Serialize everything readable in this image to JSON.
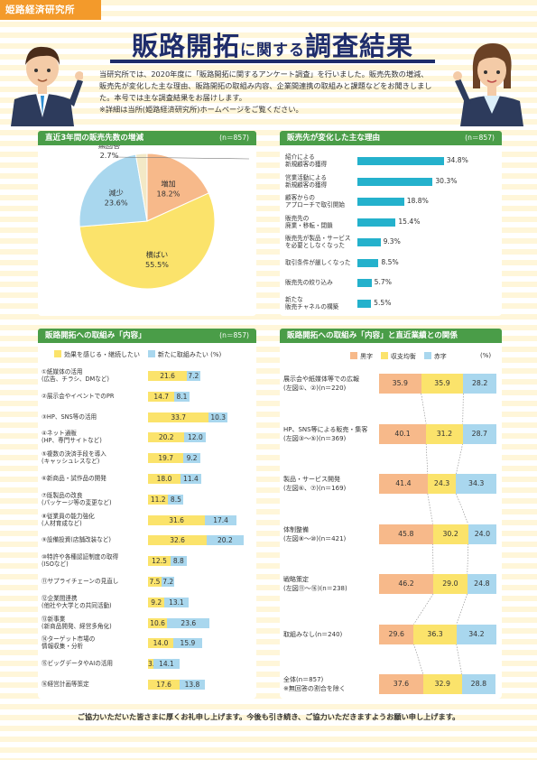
{
  "org_tag": "姫路経済研究所",
  "title": {
    "part1": "販路開拓",
    "part2": "に関する",
    "part3": "調査結果"
  },
  "intro": [
    "当研究所では、2020年度に「販路開拓に関するアンケート調査」を行いました。販売先数の増減、",
    "販売先が変化した主な理由、販路開拓の取組み内容、企業間連携の取組みと課題などをお聞きしまし",
    "た。本号では主な調査結果をお届けします。",
    "※詳細は当所(姫路経済研究所)ホームページをご覧ください。"
  ],
  "colors": {
    "green": "#4a9d48",
    "cyan": "#24b1cc",
    "yellow": "#fbe36b",
    "lightblue": "#a9d7ee",
    "orange": "#f7b98a",
    "navy": "#1f2d6b"
  },
  "panel1": {
    "title": "直近3年間の販売先数の増減",
    "n": "(n＝857)"
  },
  "panel2": {
    "title": "販売先が変化した主な理由",
    "n": "(n＝857)"
  },
  "panel3": {
    "title": "販路開拓への取組み「内容」",
    "n": "(n＝857)",
    "legend_yellow": "効果を感じる・継続したい",
    "legend_blue": "新たに取組みたい",
    "unit": "(%)"
  },
  "panel4": {
    "title": "販路開拓への取組み「内容」と直近業績との関係",
    "legend": [
      "黒字",
      "収支均衡",
      "赤字"
    ],
    "unit": "(%)"
  },
  "chart_data": [
    {
      "type": "pie",
      "title": "直近3年間の販売先数の増減",
      "slices": [
        {
          "label": "増加",
          "value": 18.2,
          "value_text": "18.2%",
          "color": "#f7b98a"
        },
        {
          "label": "横ばい",
          "value": 55.5,
          "value_text": "55.5%",
          "color": "#fbe36b"
        },
        {
          "label": "減少",
          "value": 23.6,
          "value_text": "23.6%",
          "color": "#a9d7ee"
        },
        {
          "label": "無回答",
          "value": 2.7,
          "value_text": "2.7%",
          "color": "#f3e9c6"
        }
      ]
    },
    {
      "type": "bar",
      "title": "販売先が変化した主な理由",
      "categories": [
        [
          "紹介による",
          "新規顧客の獲得"
        ],
        [
          "営業活動による",
          "新規顧客の獲得"
        ],
        [
          "顧客からの",
          "アプローチで取引開始"
        ],
        [
          "販売先の",
          "廃業・移転・閉鎖"
        ],
        [
          "販売先が製品・サービス",
          "を必要としなくなった"
        ],
        [
          "取引条件が厳しくなった"
        ],
        [
          "販売先の絞り込み"
        ],
        [
          "新たな",
          "販売チャネルの構築"
        ]
      ],
      "values": [
        34.8,
        30.3,
        18.8,
        15.4,
        9.3,
        8.5,
        5.7,
        5.5
      ],
      "value_texts": [
        "34.8%",
        "30.3%",
        "18.8%",
        "15.4%",
        "9.3%",
        "8.5%",
        "5.7%",
        "5.5%"
      ]
    },
    {
      "type": "bar",
      "title": "販路開拓への取組み「内容」",
      "categories": [
        [
          "①紙媒体の活用",
          "(広告、チラシ、DMなど)"
        ],
        [
          "②展示会やイベントでのPR"
        ],
        [
          "③HP、SNS等の活用"
        ],
        [
          "④ネット通販",
          "(HP、専門サイトなど)"
        ],
        [
          "⑤複数の決済手段を導入",
          "(キャッシュレスなど)"
        ],
        [
          "⑥新商品・試作品の開発"
        ],
        [
          "⑦既製品の改良",
          "(パッケージ等の変更など)"
        ],
        [
          "⑧従業員の能力強化",
          "(人材育成など)"
        ],
        [
          "⑨設備投資(店舗改装など)"
        ],
        [
          "⑩特許や各種認証制度の取得",
          "(ISOなど)"
        ],
        [
          "⑪サプライチェーンの見直し"
        ],
        [
          "⑫企業間連携",
          "(他社や大学との共同活動)"
        ],
        [
          "⑬新事業",
          "(新商品開発、経営多角化)"
        ],
        [
          "⑭ターゲット市場の",
          "情報収集・分析"
        ],
        [
          "⑮ビッグデータやAIの活用"
        ],
        [
          "⑯経営計画等策定"
        ]
      ],
      "series": [
        {
          "name": "効果を感じる・継続したい",
          "values": [
            21.6,
            14.7,
            33.7,
            20.2,
            19.7,
            18.0,
            11.2,
            31.6,
            32.6,
            12.5,
            7.5,
            9.2,
            10.6,
            14.0,
            3.2,
            17.6
          ]
        },
        {
          "name": "新たに取組みたい",
          "values": [
            7.2,
            8.1,
            10.3,
            12.0,
            9.2,
            11.4,
            8.5,
            17.4,
            20.2,
            8.8,
            7.2,
            13.1,
            23.6,
            15.9,
            14.1,
            13.8
          ]
        }
      ]
    },
    {
      "type": "bar",
      "title": "販路開拓への取組み「内容」と直近業績との関係",
      "categories": [
        [
          "展示会や紙媒体等での広報",
          "(左図①、②)(n＝220)"
        ],
        [
          "HP、SNS等による販売・集客",
          "(左図③～⑤)(n＝369)"
        ],
        [
          "製品・サービス開発",
          "(左図⑥、⑦)(n＝169)"
        ],
        [
          "体制整備",
          "(左図⑧～⑩)(n＝421)"
        ],
        [
          "戦略策定",
          "(左図⑪～⑯)(n＝238)"
        ],
        [
          "取組みなし(n＝240)"
        ],
        [
          "全体(n＝857)",
          "※無回答の割合を除く"
        ]
      ],
      "series": [
        {
          "name": "黒字",
          "values": [
            35.9,
            40.1,
            41.4,
            45.8,
            46.2,
            29.6,
            37.6
          ]
        },
        {
          "name": "収支均衡",
          "values": [
            35.9,
            31.2,
            24.3,
            30.2,
            29.0,
            36.3,
            32.9
          ]
        },
        {
          "name": "赤字",
          "values": [
            28.2,
            28.7,
            34.3,
            24.0,
            24.8,
            34.2,
            28.8
          ]
        }
      ]
    }
  ],
  "footer": "ご協力いただいた皆さまに厚くお礼申し上げます。今後も引き続き、ご協力いただきますようお願い申し上げます。"
}
